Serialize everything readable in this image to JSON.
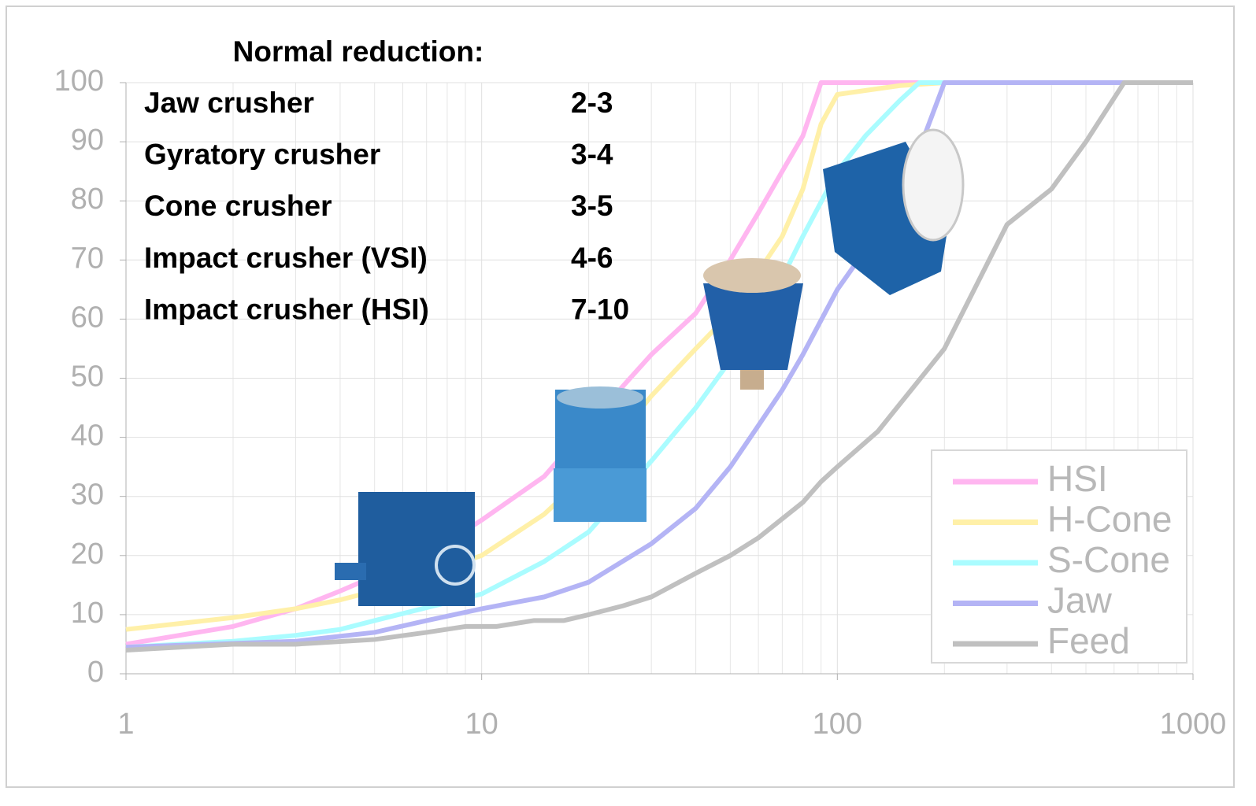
{
  "chart_data": {
    "type": "line",
    "log_x": true,
    "grid": true,
    "legend": "lower right",
    "xlim": [
      1,
      1000
    ],
    "xticks": [
      1,
      10,
      100,
      1000
    ],
    "ylim": [
      0,
      100
    ],
    "yticks": [
      0,
      10,
      20,
      30,
      40,
      50,
      60,
      70,
      80,
      90,
      100
    ],
    "annotation": {
      "title": "Normal reduction:",
      "rows": [
        [
          "Jaw crusher",
          "2-3"
        ],
        [
          "Gyratory crusher",
          "3-4"
        ],
        [
          "Cone crusher",
          "3-5"
        ],
        [
          "Impact crusher (VSI)",
          "4-6"
        ],
        [
          "Impact crusher (HSI)",
          "7-10"
        ]
      ]
    },
    "series": [
      {
        "name": "HSI",
        "color": "#ffb6f0",
        "x": [
          1,
          2,
          3,
          4,
          5,
          7,
          10,
          15,
          25,
          30,
          40,
          50,
          60,
          70,
          80,
          90,
          1000
        ],
        "values": [
          5,
          8,
          11,
          14,
          16.5,
          20,
          26,
          33.4,
          48.7,
          54,
          61,
          70,
          78,
          85,
          91,
          100,
          100
        ]
      },
      {
        "name": "H-Cone",
        "color": "#fff0a8",
        "x": [
          1,
          2,
          3,
          4,
          5,
          10,
          15,
          20,
          30,
          40,
          50,
          60,
          70,
          80,
          90,
          100,
          150,
          200,
          1000
        ],
        "values": [
          7.5,
          9.5,
          11,
          12.5,
          14,
          20,
          27,
          34,
          47,
          55,
          61,
          68,
          74,
          82,
          93,
          98,
          99.5,
          100,
          100
        ]
      },
      {
        "name": "S-Cone",
        "color": "#aafcff",
        "x": [
          1,
          2,
          3,
          4,
          5,
          10,
          15,
          20,
          30,
          40,
          50,
          60,
          70,
          80,
          100,
          120,
          150,
          170,
          1000
        ],
        "values": [
          4.5,
          5.5,
          6.5,
          7.5,
          9,
          13.5,
          19,
          24,
          36,
          45,
          53,
          60,
          67,
          74,
          85,
          91,
          97,
          100,
          100
        ]
      },
      {
        "name": "Jaw",
        "color": "#b4b4f5",
        "x": [
          1,
          3,
          5,
          7,
          10,
          15,
          20,
          30,
          40,
          50,
          60,
          70,
          80,
          100,
          150,
          200,
          1000
        ],
        "values": [
          4.5,
          5.5,
          7,
          9,
          11,
          13,
          15.5,
          22,
          28,
          35,
          42,
          48,
          54,
          65,
          80,
          100,
          100
        ]
      },
      {
        "name": "Feed",
        "color": "#c0c0c0",
        "x": [
          1,
          2,
          3,
          5,
          7,
          9,
          11,
          14,
          17,
          20,
          25,
          30,
          40,
          50,
          60,
          80,
          90,
          100,
          130,
          200,
          300,
          400,
          500,
          640,
          1000
        ],
        "values": [
          4,
          5,
          5,
          5.8,
          7,
          8,
          8,
          9,
          9,
          10,
          11.5,
          13,
          17,
          20,
          23,
          29,
          32.5,
          35,
          41,
          55,
          76,
          82,
          90,
          100,
          100
        ]
      }
    ]
  }
}
